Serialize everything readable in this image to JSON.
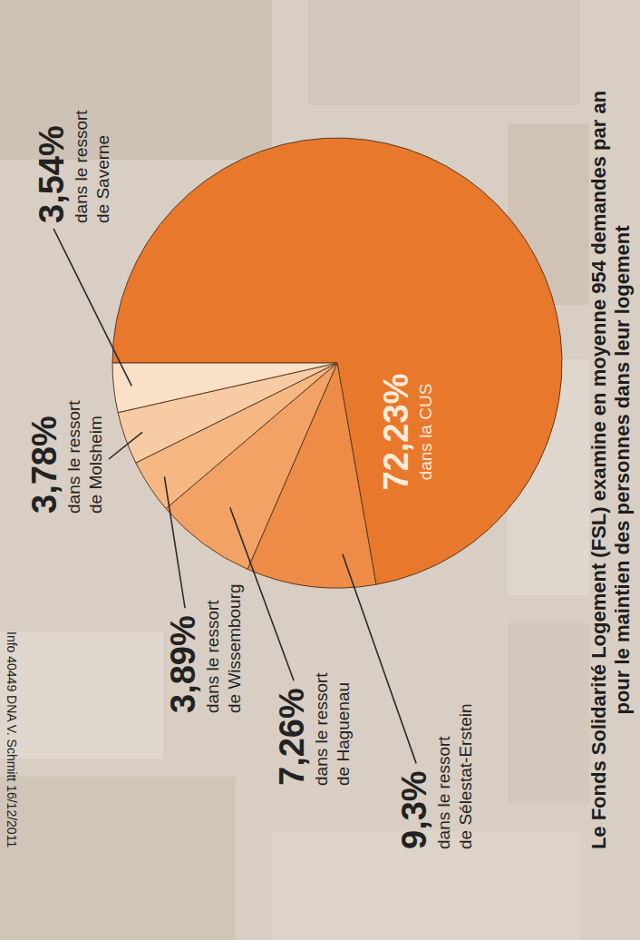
{
  "chart_data": {
    "type": "pie",
    "title": "Le Fonds Solidarité Logement (FSL) examine en moyenne 954 demandes par an pour le maintien des personnes dans leur logement",
    "source": "Info 40449 DNA V. Schmitt 16/12/2011",
    "categories": [
      "dans la CUS",
      "dans le ressort de Sélestat-Erstein",
      "dans le ressort de Haguenau",
      "dans le ressort de Wissembourg",
      "dans le ressort de Molsheim",
      "dans le ressort de Saverne"
    ],
    "values": [
      72.23,
      9.3,
      7.26,
      3.89,
      3.78,
      3.54
    ],
    "value_labels": [
      "72,23%",
      "9,3%",
      "7,26%",
      "3,89%",
      "3,78%",
      "3,54%"
    ],
    "colors": [
      "#e8782c",
      "#ee8c47",
      "#f2a264",
      "#f5b883",
      "#f7cca4",
      "#f9e0c7"
    ],
    "data_labels": true
  }
}
